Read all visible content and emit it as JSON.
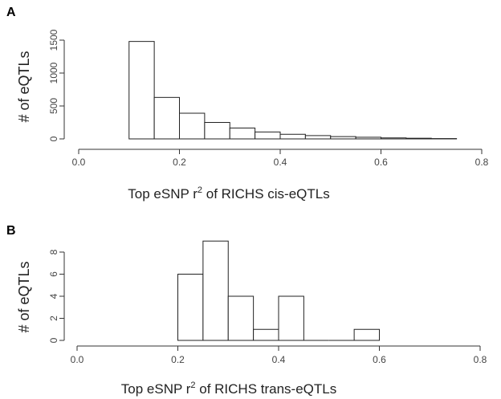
{
  "chart_data": [
    {
      "type": "bar",
      "panel_label": "A",
      "ylabel": "# of eQTLs",
      "xlabel_pre": "Top eSNP r",
      "xlabel_sup": "2",
      "xlabel_post": " of RICHS cis-eQTLs",
      "xlim": [
        0,
        0.8
      ],
      "ylim": [
        0,
        1500
      ],
      "x_ticks": [
        "0.0",
        "0.2",
        "0.4",
        "0.6",
        "0.8"
      ],
      "y_ticks": [
        "0",
        "500",
        "1000",
        "1500"
      ],
      "bin_edges": [
        0.1,
        0.15,
        0.2,
        0.25,
        0.3,
        0.35,
        0.4,
        0.45,
        0.5,
        0.55,
        0.6,
        0.65,
        0.7,
        0.75
      ],
      "values": [
        1480,
        630,
        390,
        250,
        165,
        105,
        70,
        50,
        35,
        25,
        15,
        10,
        5
      ]
    },
    {
      "type": "bar",
      "panel_label": "B",
      "ylabel": "# of eQTLs",
      "xlabel_pre": "Top eSNP r",
      "xlabel_sup": "2",
      "xlabel_post": " of RICHS trans-eQTLs",
      "xlim": [
        0,
        0.8
      ],
      "ylim": [
        0,
        8
      ],
      "x_ticks": [
        "0.0",
        "0.2",
        "0.4",
        "0.6",
        "0.8"
      ],
      "y_ticks": [
        "0",
        "2",
        "4",
        "6",
        "8"
      ],
      "bin_edges": [
        0.2,
        0.25,
        0.3,
        0.35,
        0.4,
        0.45,
        0.5,
        0.55,
        0.6
      ],
      "values": [
        6,
        9,
        4,
        1,
        4,
        0,
        0,
        1
      ]
    }
  ]
}
